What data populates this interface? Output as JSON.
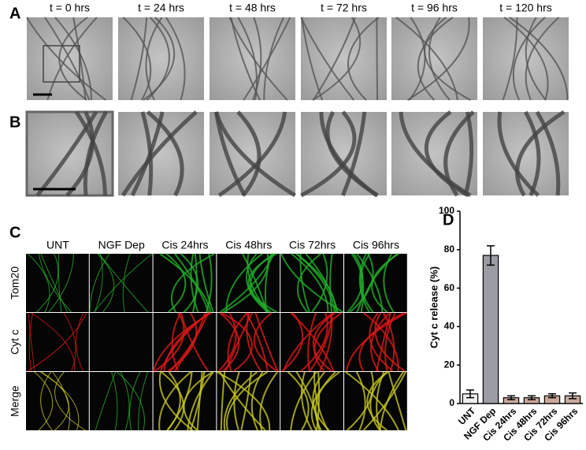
{
  "panel_a": {
    "label": "A",
    "time_labels": [
      "t = 0 hrs",
      "t = 24 hrs",
      "t = 48 hrs",
      "t = 72 hrs",
      "t = 96 hrs",
      "t = 120 hrs"
    ]
  },
  "panel_b": {
    "label": "B"
  },
  "panel_c": {
    "label": "C",
    "columns": [
      "UNT",
      "NGF Dep",
      "Cis 24hrs",
      "Cis 48hrs",
      "Cis 72hrs",
      "Cis 96hrs"
    ],
    "rows": [
      "Tom20",
      "Cyt c",
      "Merge"
    ]
  },
  "panel_d": {
    "label": "D"
  },
  "chart_data": {
    "type": "bar",
    "y_label": "Cyt c release (%)",
    "categories": [
      "UNT",
      "NGF Dep",
      "Cis 24hrs",
      "Cis 48hrs",
      "Cis 72hrs",
      "Cis 96hrs"
    ],
    "values": [
      5,
      77,
      3,
      3,
      4,
      4
    ],
    "errors": [
      2,
      5,
      1,
      1,
      1,
      1.5
    ],
    "colors": [
      "#eeeeee",
      "#9c9ca4",
      "#c9a99a",
      "#c9a99a",
      "#c9a99a",
      "#c9a99a"
    ],
    "ylim": [
      0,
      100
    ],
    "yticks": [
      0,
      20,
      40,
      60,
      80,
      100
    ]
  }
}
